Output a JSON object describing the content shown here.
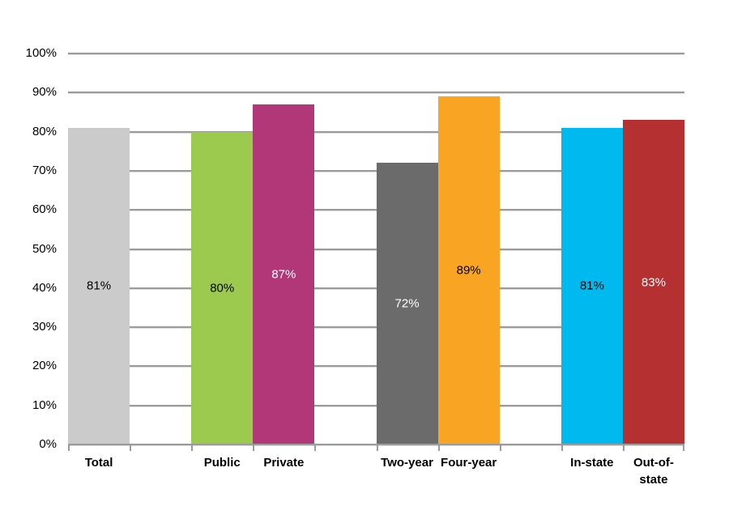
{
  "chart_data": {
    "type": "bar",
    "title": "",
    "xlabel": "",
    "ylabel": "",
    "categories": [
      "Total",
      "Public",
      "Private",
      "Two-year",
      "Four-year",
      "In-state",
      "Out-of-state"
    ],
    "values": [
      81,
      80,
      87,
      72,
      89,
      81,
      83
    ],
    "data_labels": [
      "81%",
      "80%",
      "87%",
      "72%",
      "89%",
      "81%",
      "83%"
    ],
    "bar_colors": [
      "#CBCBCB",
      "#9BCA4E",
      "#B23778",
      "#6B6B6B",
      "#F9A423",
      "#00B9EE",
      "#B53031"
    ],
    "data_label_colors": [
      "#000000",
      "#000000",
      "#FFFFFF",
      "#FFFFFF",
      "#000000",
      "#000000",
      "#FFFFFF"
    ],
    "slot_index": [
      0,
      2,
      3,
      5,
      6,
      8,
      9
    ],
    "num_slots": 10,
    "y_tick_labels": [
      "0%",
      "10%",
      "20%",
      "30%",
      "40%",
      "50%",
      "60%",
      "70%",
      "80%",
      "90%",
      "100%"
    ],
    "y_tick_values": [
      0,
      10,
      20,
      30,
      40,
      50,
      60,
      70,
      80,
      90,
      100
    ],
    "ylim": [
      0,
      100
    ],
    "grid": true,
    "legend": false,
    "gridline_color": "#9B9B9B",
    "axis_line_color": "#9B9B9B",
    "tick_color": "#9B9B9B",
    "axis_text_color": "#000000"
  }
}
